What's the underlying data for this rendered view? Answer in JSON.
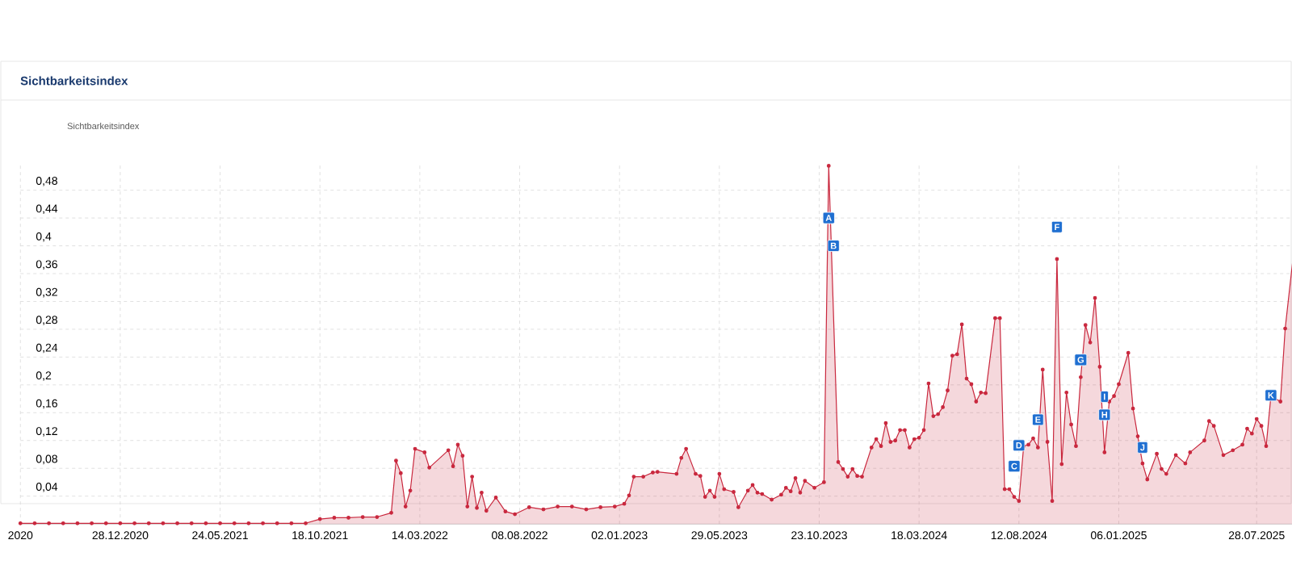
{
  "chart_data": {
    "type": "area",
    "title": "Sichtbarkeitsindex",
    "legend_title": "Sichtbarkeitsindex",
    "grid": true,
    "marker": "circle",
    "xlim": [
      "2020-08-03",
      "2025-09-29"
    ],
    "ylim": [
      0,
      0.52
    ],
    "xticks": [
      {
        "value": "2020-08-03",
        "label": "2020"
      },
      {
        "value": "2020-12-28",
        "label": "28.12.2020"
      },
      {
        "value": "2021-05-24",
        "label": "24.05.2021"
      },
      {
        "value": "2021-10-18",
        "label": "18.10.2021"
      },
      {
        "value": "2022-03-14",
        "label": "14.03.2022"
      },
      {
        "value": "2022-08-08",
        "label": "08.08.2022"
      },
      {
        "value": "2023-01-02",
        "label": "02.01.2023"
      },
      {
        "value": "2023-05-29",
        "label": "29.05.2023"
      },
      {
        "value": "2023-10-23",
        "label": "23.10.2023"
      },
      {
        "value": "2024-03-18",
        "label": "18.03.2024"
      },
      {
        "value": "2024-08-12",
        "label": "12.08.2024"
      },
      {
        "value": "2025-01-06",
        "label": "06.01.2025"
      },
      {
        "value": "2025-07-28",
        "label": "28.07.2025"
      }
    ],
    "yticks": [
      {
        "value": 0.04,
        "label": "0,04"
      },
      {
        "value": 0.08,
        "label": "0,08"
      },
      {
        "value": 0.12,
        "label": "0,12"
      },
      {
        "value": 0.16,
        "label": "0,16"
      },
      {
        "value": 0.2,
        "label": "0,2"
      },
      {
        "value": 0.24,
        "label": "0,24"
      },
      {
        "value": 0.28,
        "label": "0,28"
      },
      {
        "value": 0.32,
        "label": "0,32"
      },
      {
        "value": 0.36,
        "label": "0,36"
      },
      {
        "value": 0.4,
        "label": "0,4"
      },
      {
        "value": 0.44,
        "label": "0,44"
      },
      {
        "value": 0.48,
        "label": "0,48"
      }
    ],
    "annotations": [
      {
        "text": "A",
        "x": "2023-11-06",
        "y": 0.44
      },
      {
        "text": "B",
        "x": "2023-11-13",
        "y": 0.4
      },
      {
        "text": "C",
        "x": "2024-08-05",
        "y": 0.083
      },
      {
        "text": "D",
        "x": "2024-08-12",
        "y": 0.113
      },
      {
        "text": "E",
        "x": "2024-09-09",
        "y": 0.15
      },
      {
        "text": "F",
        "x": "2024-10-07",
        "y": 0.427
      },
      {
        "text": "G",
        "x": "2024-11-11",
        "y": 0.236
      },
      {
        "text": "H",
        "x": "2024-12-16",
        "y": 0.157
      },
      {
        "text": "I",
        "x": "2024-12-16",
        "y": 0.183
      },
      {
        "text": "J",
        "x": "2025-02-10",
        "y": 0.11
      },
      {
        "text": "K",
        "x": "2025-08-18",
        "y": 0.185
      }
    ],
    "series": [
      {
        "color": "#c9283e",
        "x": [
          "2020-08-03",
          "2020-08-24",
          "2020-09-14",
          "2020-10-05",
          "2020-10-26",
          "2020-11-16",
          "2020-12-07",
          "2020-12-28",
          "2021-01-18",
          "2021-02-08",
          "2021-03-01",
          "2021-03-22",
          "2021-04-12",
          "2021-05-03",
          "2021-05-24",
          "2021-06-14",
          "2021-07-05",
          "2021-07-26",
          "2021-08-16",
          "2021-09-06",
          "2021-09-27",
          "2021-10-18",
          "2021-11-08",
          "2021-11-29",
          "2021-12-20",
          "2022-01-10",
          "2022-01-31",
          "2022-02-07",
          "2022-02-14",
          "2022-02-21",
          "2022-02-28",
          "2022-03-07",
          "2022-03-21",
          "2022-03-28",
          "2022-04-25",
          "2022-05-02",
          "2022-05-09",
          "2022-05-16",
          "2022-05-23",
          "2022-05-30",
          "2022-06-06",
          "2022-06-13",
          "2022-06-20",
          "2022-07-04",
          "2022-07-18",
          "2022-08-01",
          "2022-08-22",
          "2022-09-12",
          "2022-10-03",
          "2022-10-24",
          "2022-11-14",
          "2022-12-05",
          "2022-12-26",
          "2023-01-09",
          "2023-01-16",
          "2023-01-23",
          "2023-02-06",
          "2023-02-20",
          "2023-02-27",
          "2023-03-27",
          "2023-04-03",
          "2023-04-10",
          "2023-04-24",
          "2023-05-01",
          "2023-05-08",
          "2023-05-15",
          "2023-05-22",
          "2023-05-29",
          "2023-06-05",
          "2023-06-19",
          "2023-06-26",
          "2023-07-10",
          "2023-07-17",
          "2023-07-24",
          "2023-07-31",
          "2023-08-14",
          "2023-08-28",
          "2023-09-04",
          "2023-09-11",
          "2023-09-18",
          "2023-09-25",
          "2023-10-02",
          "2023-10-16",
          "2023-10-30",
          "2023-11-06",
          "2023-11-20",
          "2023-11-27",
          "2023-12-04",
          "2023-12-11",
          "2023-12-18",
          "2023-12-25",
          "2024-01-08",
          "2024-01-15",
          "2024-01-22",
          "2024-01-29",
          "2024-02-05",
          "2024-02-12",
          "2024-02-19",
          "2024-02-26",
          "2024-03-04",
          "2024-03-11",
          "2024-03-18",
          "2024-03-25",
          "2024-04-01",
          "2024-04-08",
          "2024-04-15",
          "2024-04-22",
          "2024-04-29",
          "2024-05-06",
          "2024-05-13",
          "2024-05-20",
          "2024-05-27",
          "2024-06-03",
          "2024-06-10",
          "2024-06-17",
          "2024-06-24",
          "2024-07-08",
          "2024-07-15",
          "2024-07-22",
          "2024-07-29",
          "2024-08-05",
          "2024-08-12",
          "2024-08-19",
          "2024-08-26",
          "2024-09-02",
          "2024-09-09",
          "2024-09-16",
          "2024-09-23",
          "2024-09-30",
          "2024-10-07",
          "2024-10-14",
          "2024-10-21",
          "2024-10-28",
          "2024-11-04",
          "2024-11-11",
          "2024-11-18",
          "2024-11-25",
          "2024-12-02",
          "2024-12-09",
          "2024-12-16",
          "2024-12-23",
          "2024-12-30",
          "2025-01-06",
          "2025-01-20",
          "2025-01-27",
          "2025-02-03",
          "2025-02-10",
          "2025-02-17",
          "2025-03-03",
          "2025-03-10",
          "2025-03-17",
          "2025-03-31",
          "2025-04-14",
          "2025-04-21",
          "2025-05-12",
          "2025-05-19",
          "2025-05-26",
          "2025-06-09",
          "2025-06-23",
          "2025-07-07",
          "2025-07-14",
          "2025-07-21",
          "2025-07-28",
          "2025-08-04",
          "2025-08-11",
          "2025-08-18",
          "2025-09-01",
          "2025-09-08",
          "2025-09-22"
        ],
        "values": [
          0.001,
          0.001,
          0.001,
          0.001,
          0.001,
          0.001,
          0.001,
          0.001,
          0.001,
          0.001,
          0.001,
          0.001,
          0.001,
          0.001,
          0.001,
          0.001,
          0.001,
          0.001,
          0.001,
          0.001,
          0.001,
          0.007,
          0.009,
          0.009,
          0.01,
          0.01,
          0.016,
          0.091,
          0.073,
          0.025,
          0.048,
          0.108,
          0.103,
          0.081,
          0.106,
          0.083,
          0.114,
          0.098,
          0.025,
          0.068,
          0.023,
          0.045,
          0.019,
          0.038,
          0.018,
          0.014,
          0.024,
          0.021,
          0.025,
          0.025,
          0.021,
          0.024,
          0.025,
          0.029,
          0.041,
          0.068,
          0.068,
          0.074,
          0.075,
          0.072,
          0.095,
          0.108,
          0.072,
          0.069,
          0.039,
          0.048,
          0.039,
          0.072,
          0.05,
          0.046,
          0.024,
          0.048,
          0.056,
          0.045,
          0.043,
          0.035,
          0.042,
          0.052,
          0.047,
          0.066,
          0.045,
          0.062,
          0.052,
          0.06,
          0.515,
          0.089,
          0.079,
          0.068,
          0.079,
          0.069,
          0.068,
          0.11,
          0.122,
          0.112,
          0.145,
          0.118,
          0.12,
          0.135,
          0.135,
          0.11,
          0.122,
          0.124,
          0.135,
          0.202,
          0.155,
          0.158,
          0.168,
          0.192,
          0.242,
          0.244,
          0.287,
          0.209,
          0.201,
          0.176,
          0.189,
          0.188,
          0.296,
          0.296,
          0.05,
          0.05,
          0.039,
          0.033,
          0.112,
          0.114,
          0.123,
          0.11,
          0.222,
          0.118,
          0.033,
          0.381,
          0.086,
          0.189,
          0.143,
          0.112,
          0.211,
          0.286,
          0.261,
          0.325,
          0.226,
          0.103,
          0.176,
          0.184,
          0.201,
          0.246,
          0.166,
          0.126,
          0.087,
          0.064,
          0.101,
          0.079,
          0.072,
          0.099,
          0.087,
          0.103,
          0.12,
          0.148,
          0.141,
          0.099,
          0.106,
          0.114,
          0.137,
          0.13,
          0.151,
          0.141,
          0.112,
          0.184,
          0.176,
          0.281,
          0.404
        ]
      }
    ]
  }
}
